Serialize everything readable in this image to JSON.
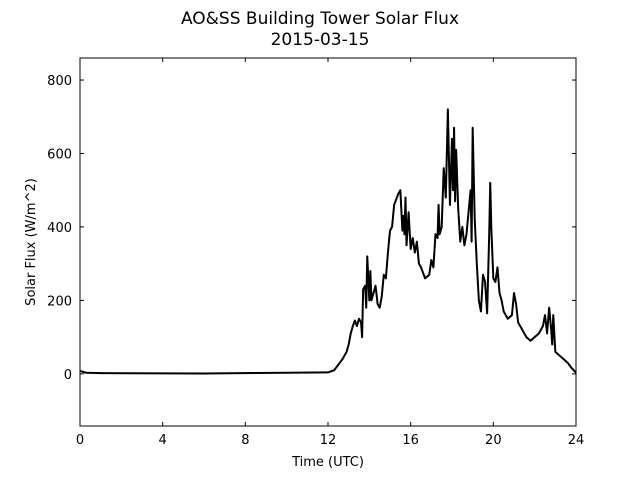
{
  "chart_data": {
    "type": "line",
    "title": "AO&SS Building Tower Solar Flux",
    "subtitle": "2015-03-15",
    "x_label": "Time (UTC)",
    "y_label": "Solar Flux (W/m^2)",
    "xlim": [
      0,
      24
    ],
    "xticks": [
      0,
      4,
      8,
      12,
      16,
      20,
      24
    ],
    "ylim": [
      -142,
      860
    ],
    "yticks": [
      0,
      200,
      400,
      600,
      800
    ],
    "grid": false,
    "series": [
      {
        "color": "#000000",
        "x": [
          0,
          0.3,
          1,
          6,
          10,
          12,
          12.3,
          12.5,
          12.7,
          12.9,
          13.0,
          13.1,
          13.2,
          13.3,
          13.4,
          13.5,
          13.6,
          13.65,
          13.7,
          13.8,
          13.85,
          13.9,
          14.0,
          14.05,
          14.1,
          14.2,
          14.3,
          14.4,
          14.5,
          14.6,
          14.7,
          14.8,
          14.9,
          15.0,
          15.1,
          15.2,
          15.4,
          15.5,
          15.6,
          15.65,
          15.7,
          15.75,
          15.8,
          15.9,
          16.0,
          16.1,
          16.2,
          16.3,
          16.4,
          16.5,
          16.7,
          16.9,
          17.0,
          17.1,
          17.2,
          17.3,
          17.35,
          17.4,
          17.5,
          17.6,
          17.7,
          17.8,
          17.85,
          17.9,
          18.0,
          18.05,
          18.1,
          18.15,
          18.2,
          18.3,
          18.4,
          18.5,
          18.6,
          18.7,
          18.8,
          18.9,
          18.95,
          19.0,
          19.1,
          19.2,
          19.3,
          19.4,
          19.5,
          19.6,
          19.7,
          19.8,
          19.85,
          19.9,
          20.0,
          20.1,
          20.2,
          20.3,
          20.4,
          20.5,
          20.7,
          20.9,
          21.0,
          21.1,
          21.2,
          21.4,
          21.6,
          21.8,
          22.0,
          22.2,
          22.4,
          22.5,
          22.6,
          22.7,
          22.8,
          22.85,
          22.9,
          23.0,
          23.2,
          23.4,
          23.6,
          23.8,
          24.0
        ],
        "values": [
          8,
          3,
          2,
          1,
          3,
          4,
          10,
          25,
          40,
          60,
          80,
          110,
          130,
          145,
          130,
          150,
          140,
          100,
          230,
          240,
          180,
          320,
          200,
          280,
          200,
          220,
          240,
          190,
          180,
          210,
          270,
          260,
          330,
          390,
          400,
          460,
          490,
          500,
          390,
          430,
          380,
          480,
          350,
          440,
          340,
          370,
          330,
          360,
          300,
          290,
          260,
          270,
          310,
          290,
          380,
          370,
          460,
          380,
          400,
          560,
          480,
          720,
          590,
          460,
          640,
          500,
          670,
          470,
          610,
          450,
          360,
          400,
          350,
          380,
          440,
          500,
          360,
          670,
          420,
          300,
          200,
          170,
          270,
          250,
          165,
          380,
          520,
          400,
          260,
          250,
          290,
          220,
          200,
          170,
          150,
          160,
          220,
          190,
          140,
          120,
          100,
          90,
          100,
          110,
          130,
          160,
          110,
          180,
          120,
          80,
          160,
          60,
          50,
          40,
          30,
          15,
          3
        ]
      }
    ]
  }
}
